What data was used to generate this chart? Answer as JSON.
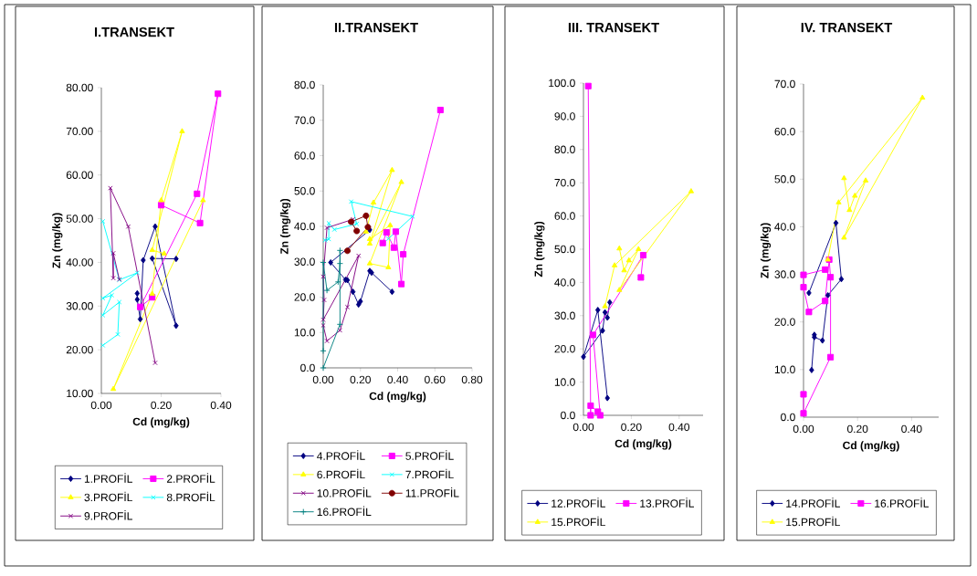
{
  "chart_data": [
    {
      "type": "line",
      "title": "I.TRANSEKT",
      "xlabel": "Cd (mg/kg)",
      "ylabel": "Zn  (mg/kg)",
      "legend": "bottom",
      "grid": false,
      "xlim": [
        0,
        0.4
      ],
      "ylim": [
        10,
        80
      ],
      "xticks": [
        {
          "value": 0,
          "label": "0.00"
        },
        {
          "value": 0.2,
          "label": "0.20"
        },
        {
          "value": 0.4,
          "label": "0.40"
        }
      ],
      "yticks": [
        {
          "value": 10,
          "label": "10.00"
        },
        {
          "value": 20,
          "label": "20.00"
        },
        {
          "value": 30,
          "label": "30.00"
        },
        {
          "value": 40,
          "label": "40.00"
        },
        {
          "value": 50,
          "label": "50.00"
        },
        {
          "value": 60,
          "label": "60.00"
        },
        {
          "value": 70,
          "label": "70.00"
        },
        {
          "value": 80,
          "label": "80.00"
        }
      ],
      "series": [
        {
          "name": "1.PROFİL",
          "color": "#000080",
          "marker": "diamond",
          "x": [
            0.12,
            0.12,
            0.13,
            0.14,
            0.18,
            0.25,
            0.17,
            0.25
          ],
          "values": [
            32.9,
            31.5,
            27.0,
            40.5,
            48.2,
            25.5,
            40.9,
            40.8
          ]
        },
        {
          "name": "2.PROFİL",
          "color": "#ff00ff",
          "marker": "square",
          "x": [
            0.2,
            0.33,
            0.39,
            0.32,
            0.13,
            0.17
          ],
          "values": [
            53.1,
            49.0,
            78.6,
            55.7,
            29.8,
            32.0
          ]
        },
        {
          "name": "3.PROFİL",
          "color": "#ffff00",
          "marker": "triangle",
          "x": [
            0.34,
            0.04,
            0.17,
            0.2,
            0.27,
            0.17,
            0.21
          ],
          "values": [
            54.2,
            11.0,
            32.8,
            54.2,
            70.0,
            42.8,
            42.0
          ]
        },
        {
          "name": "8.PROFİL",
          "color": "#00ffff",
          "marker": "cross",
          "x": [
            0.005,
            0.06,
            0.12,
            0.005,
            0.035,
            0.005,
            0.06,
            0.055,
            0.005
          ],
          "values": [
            49.4,
            36.0,
            37.6,
            31.8,
            32.5,
            27.9,
            30.9,
            23.5,
            21.0
          ]
        },
        {
          "name": "9.PROFİL",
          "color": "#800080",
          "marker": "cross",
          "x": [
            0.06,
            0.04,
            0.04,
            0.03,
            0.09,
            0.18
          ],
          "values": [
            36.1,
            42.1,
            36.4,
            57.0,
            48.2,
            17.0
          ]
        }
      ]
    },
    {
      "type": "line",
      "title": "II.TRANSEKT",
      "xlabel": "Cd (mg/kg)",
      "ylabel": "Zn  (mg/kg)",
      "legend": "bottom",
      "grid": false,
      "xlim": [
        0,
        0.8
      ],
      "ylim": [
        0,
        80
      ],
      "xticks": [
        {
          "value": 0,
          "label": "0.00"
        },
        {
          "value": 0.2,
          "label": "0.20"
        },
        {
          "value": 0.4,
          "label": "0.40"
        },
        {
          "value": 0.6,
          "label": "0.60"
        },
        {
          "value": 0.8,
          "label": "0.80"
        }
      ],
      "yticks": [
        {
          "value": 0,
          "label": "0.0"
        },
        {
          "value": 10,
          "label": "10.0"
        },
        {
          "value": 20,
          "label": "20.0"
        },
        {
          "value": 30,
          "label": "30.0"
        },
        {
          "value": 40,
          "label": "40.0"
        },
        {
          "value": 50,
          "label": "50.0"
        },
        {
          "value": 60,
          "label": "60.0"
        },
        {
          "value": 70,
          "label": "70.0"
        },
        {
          "value": 80,
          "label": "80.0"
        }
      ],
      "series": [
        {
          "name": "4.PROFİL",
          "color": "#000080",
          "marker": "diamond",
          "x": [
            0.25,
            0.04,
            0.12,
            0.13,
            0.16,
            0.19,
            0.2,
            0.25,
            0.26,
            0.37
          ],
          "values": [
            39.0,
            29.8,
            24.9,
            24.8,
            21.5,
            17.9,
            18.8,
            27.4,
            26.9,
            21.5
          ]
        },
        {
          "name": "5.PROFİL",
          "color": "#ff00ff",
          "marker": "square",
          "x": [
            0.32,
            0.34,
            0.38,
            0.39,
            0.42,
            0.43,
            0.63
          ],
          "values": [
            35.3,
            38.3,
            34.0,
            38.5,
            23.7,
            32.1,
            72.9
          ]
        },
        {
          "name": "6.PROFİL",
          "color": "#ffff00",
          "marker": "triangle",
          "x": [
            0.23,
            0.27,
            0.37,
            0.25,
            0.42,
            0.25,
            0.35,
            0.36,
            0.25
          ],
          "values": [
            38.5,
            46.7,
            55.9,
            35.1,
            52.5,
            29.5,
            28.4,
            40.3,
            36.4
          ]
        },
        {
          "name": "7.PROFİL",
          "color": "#00ffff",
          "marker": "cross",
          "x": [
            0.01,
            0.03,
            0.03,
            0.06,
            0.18,
            0.15,
            0.48,
            0.35
          ],
          "values": [
            36.1,
            36.4,
            40.9,
            39.1,
            40.7,
            47.0,
            42.8,
            36.5
          ]
        },
        {
          "name": "10.PROFİL",
          "color": "#800080",
          "marker": "cross",
          "x": [
            0.0,
            0.02,
            0.09,
            0.13,
            0.19,
            0.0,
            0.005,
            0.0,
            0.02,
            0.16
          ],
          "values": [
            12.0,
            7.6,
            10.6,
            17.2,
            31.7,
            13.6,
            19.2,
            25.8,
            39.6,
            42.0
          ]
        },
        {
          "name": "11.PROFİL",
          "color": "#800000",
          "marker": "circle",
          "x": [
            0.13,
            0.24,
            0.23,
            0.15,
            0.18
          ],
          "values": [
            33.1,
            39.8,
            43.0,
            41.3,
            38.7
          ]
        },
        {
          "name": "16.PROFİL",
          "color": "#008080",
          "marker": "plus",
          "x": [
            0.0,
            0.09,
            0.09,
            0.09,
            0.08,
            0.02,
            0.0,
            0.0
          ],
          "values": [
            0.0,
            12.3,
            33.2,
            29.5,
            24.3,
            21.9,
            29.8,
            4.8
          ]
        }
      ]
    },
    {
      "type": "line",
      "title": "III. TRANSEKT",
      "xlabel": "Cd (mg/kg)",
      "ylabel": "Zn  (mg/kg)",
      "legend": "bottom",
      "grid": false,
      "xlim": [
        0,
        0.5
      ],
      "ylim": [
        0,
        100
      ],
      "xticks": [
        {
          "value": 0,
          "label": "0.00"
        },
        {
          "value": 0.2,
          "label": "0.20"
        },
        {
          "value": 0.4,
          "label": "0.40"
        }
      ],
      "yticks": [
        {
          "value": 0,
          "label": "0.0"
        },
        {
          "value": 10,
          "label": "10.0"
        },
        {
          "value": 20,
          "label": "20.0"
        },
        {
          "value": 30,
          "label": "30.0"
        },
        {
          "value": 40,
          "label": "40.0"
        },
        {
          "value": 50,
          "label": "50.0"
        },
        {
          "value": 60,
          "label": "60.0"
        },
        {
          "value": 70,
          "label": "70.0"
        },
        {
          "value": 80,
          "label": "80.0"
        },
        {
          "value": 90,
          "label": "90.0"
        },
        {
          "value": 100,
          "label": "100.0"
        }
      ],
      "series": [
        {
          "name": "12.PROFİL",
          "color": "#000080",
          "marker": "diamond",
          "x": [
            0.1,
            0.06,
            0.0,
            0.08,
            0.09,
            0.1,
            0.11
          ],
          "values": [
            5.2,
            31.7,
            17.6,
            25.5,
            31.0,
            29.4,
            34.0
          ]
        },
        {
          "name": "13.PROFİL",
          "color": "#ff00ff",
          "marker": "square",
          "x": [
            0.02,
            0.03,
            0.03,
            0.06,
            0.07,
            0.04,
            0.25,
            0.24
          ],
          "values": [
            99.1,
            0.0,
            2.9,
            1.1,
            0.0,
            24.2,
            48.2,
            41.5
          ]
        },
        {
          "name": "15.PROFİL",
          "color": "#ffff00",
          "marker": "triangle",
          "x": [
            0.09,
            0.13,
            0.45,
            0.15,
            0.23,
            0.19,
            0.17,
            0.15
          ],
          "values": [
            32.8,
            45.1,
            67.4,
            37.7,
            50.0,
            46.6,
            43.6,
            50.2
          ]
        }
      ]
    },
    {
      "type": "line",
      "title": "IV. TRANSEKT",
      "xlabel": "Cd (mg/kg)",
      "ylabel": "Zn  (mg/kg)",
      "legend": "bottom",
      "grid": false,
      "xlim": [
        0,
        0.5
      ],
      "ylim": [
        0,
        70
      ],
      "xticks": [
        {
          "value": 0,
          "label": "0.00"
        },
        {
          "value": 0.2,
          "label": "0.20"
        },
        {
          "value": 0.4,
          "label": "0.40"
        }
      ],
      "yticks": [
        {
          "value": 0,
          "label": "0.0"
        },
        {
          "value": 10,
          "label": "10.0"
        },
        {
          "value": 20,
          "label": "20.0"
        },
        {
          "value": 30,
          "label": "30.0"
        },
        {
          "value": 40,
          "label": "40.0"
        },
        {
          "value": 50,
          "label": "50.0"
        },
        {
          "value": 60,
          "label": "60.0"
        },
        {
          "value": 70,
          "label": "70.0"
        }
      ],
      "series": [
        {
          "name": "14.PROFİL",
          "color": "#000080",
          "marker": "diamond",
          "x": [
            0.03,
            0.04,
            0.04,
            0.07,
            0.09,
            0.14,
            0.12,
            0.02
          ],
          "values": [
            9.9,
            17.3,
            16.8,
            16.1,
            25.6,
            29.0,
            40.8,
            26.1
          ]
        },
        {
          "name": "16.PROFİL",
          "color": "#ff00ff",
          "marker": "square",
          "x": [
            0.0,
            0.0,
            0.1,
            0.1,
            0.095,
            0.08,
            0.02,
            0.0,
            0.0,
            0.08
          ],
          "values": [
            4.8,
            0.8,
            12.6,
            29.4,
            33.1,
            24.4,
            22.1,
            27.3,
            29.9,
            31.0
          ]
        },
        {
          "name": "15.PROFİL",
          "color": "#ffff00",
          "marker": "triangle",
          "x": [
            0.09,
            0.13,
            0.44,
            0.15,
            0.23,
            0.19,
            0.17,
            0.15
          ],
          "values": [
            33.1,
            45.1,
            67.1,
            37.7,
            49.7,
            46.5,
            43.5,
            50.2
          ]
        }
      ]
    }
  ]
}
